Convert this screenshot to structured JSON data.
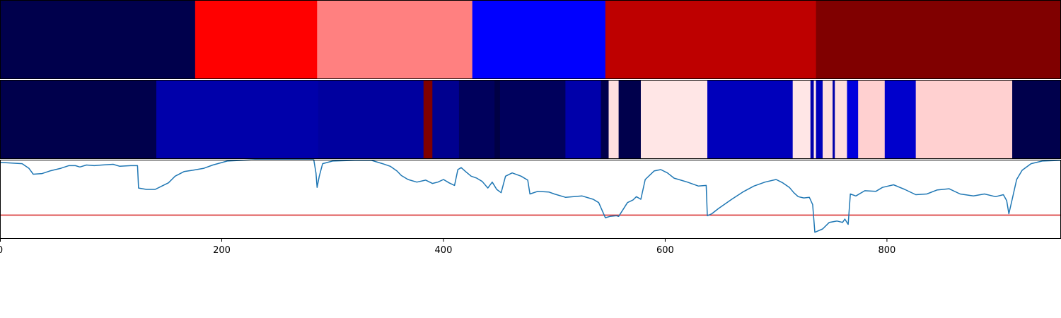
{
  "chart_data": {
    "type": "heatmap",
    "x_range": [
      0,
      957
    ],
    "x_ticks": [
      {
        "value": 0,
        "label": "0"
      },
      {
        "value": 200,
        "label": "200"
      },
      {
        "value": 400,
        "label": "400"
      },
      {
        "value": 600,
        "label": "600"
      },
      {
        "value": 800,
        "label": "800"
      }
    ],
    "panels": [
      {
        "name": "segment-band-top",
        "kind": "segments",
        "segments": [
          {
            "start": 0,
            "end": 176,
            "color": "#00004c"
          },
          {
            "start": 176,
            "end": 286,
            "color": "#ff0000"
          },
          {
            "start": 286,
            "end": 426,
            "color": "#ff8080"
          },
          {
            "start": 426,
            "end": 546,
            "color": "#0000ff"
          },
          {
            "start": 546,
            "end": 736,
            "color": "#be0000"
          },
          {
            "start": 736,
            "end": 957,
            "color": "#800000"
          }
        ]
      },
      {
        "name": "segment-band-middle",
        "kind": "segments",
        "segments": [
          {
            "start": 0,
            "end": 141,
            "color": "#00004c"
          },
          {
            "start": 141,
            "end": 287,
            "color": "#0000aa"
          },
          {
            "start": 287,
            "end": 382,
            "color": "#00009f"
          },
          {
            "start": 382,
            "end": 390,
            "color": "#800000"
          },
          {
            "start": 390,
            "end": 414,
            "color": "#00008f"
          },
          {
            "start": 414,
            "end": 446,
            "color": "#00005c"
          },
          {
            "start": 446,
            "end": 451,
            "color": "#000044"
          },
          {
            "start": 451,
            "end": 510,
            "color": "#00005c"
          },
          {
            "start": 510,
            "end": 542,
            "color": "#0000aa"
          },
          {
            "start": 542,
            "end": 549,
            "color": "#00004c"
          },
          {
            "start": 549,
            "end": 558,
            "color": "#ffe0e0"
          },
          {
            "start": 558,
            "end": 578,
            "color": "#00004c"
          },
          {
            "start": 578,
            "end": 638,
            "color": "#ffe6e6"
          },
          {
            "start": 638,
            "end": 715,
            "color": "#0000bb"
          },
          {
            "start": 715,
            "end": 731,
            "color": "#ffe6e6"
          },
          {
            "start": 731,
            "end": 734,
            "color": "#0000aa"
          },
          {
            "start": 734,
            "end": 736,
            "color": "#ffe6e6"
          },
          {
            "start": 736,
            "end": 742,
            "color": "#0000bb"
          },
          {
            "start": 742,
            "end": 751,
            "color": "#ffdede"
          },
          {
            "start": 751,
            "end": 753,
            "color": "#0000aa"
          },
          {
            "start": 753,
            "end": 764,
            "color": "#ffdede"
          },
          {
            "start": 764,
            "end": 774,
            "color": "#0000dd"
          },
          {
            "start": 774,
            "end": 798,
            "color": "#ffd0d0"
          },
          {
            "start": 798,
            "end": 826,
            "color": "#0000cc"
          },
          {
            "start": 826,
            "end": 913,
            "color": "#ffd0d0"
          },
          {
            "start": 913,
            "end": 957,
            "color": "#00004c"
          }
        ]
      },
      {
        "name": "line-panel",
        "kind": "line",
        "ylim": [
          -0.2,
          1.0
        ],
        "threshold": 0.16,
        "threshold_color": "#d62728",
        "line_color": "#1f77b4",
        "points": [
          [
            0,
            0.96
          ],
          [
            20,
            0.94
          ],
          [
            26,
            0.87
          ],
          [
            30,
            0.78
          ],
          [
            38,
            0.79
          ],
          [
            45,
            0.83
          ],
          [
            55,
            0.87
          ],
          [
            62,
            0.91
          ],
          [
            68,
            0.91
          ],
          [
            72,
            0.89
          ],
          [
            78,
            0.92
          ],
          [
            85,
            0.91
          ],
          [
            92,
            0.92
          ],
          [
            102,
            0.93
          ],
          [
            108,
            0.9
          ],
          [
            118,
            0.91
          ],
          [
            124,
            0.91
          ],
          [
            125,
            0.57
          ],
          [
            132,
            0.55
          ],
          [
            140,
            0.55
          ],
          [
            146,
            0.6
          ],
          [
            152,
            0.65
          ],
          [
            158,
            0.75
          ],
          [
            166,
            0.82
          ],
          [
            174,
            0.84
          ],
          [
            184,
            0.87
          ],
          [
            192,
            0.92
          ],
          [
            205,
            0.98
          ],
          [
            230,
            1.0
          ],
          [
            260,
            1.0
          ],
          [
            280,
            1.0
          ],
          [
            283,
            1.0
          ],
          [
            285,
            0.8
          ],
          [
            286,
            0.58
          ],
          [
            288,
            0.75
          ],
          [
            291,
            0.94
          ],
          [
            300,
            0.98
          ],
          [
            320,
            0.99
          ],
          [
            335,
            0.99
          ],
          [
            345,
            0.94
          ],
          [
            352,
            0.9
          ],
          [
            358,
            0.83
          ],
          [
            362,
            0.76
          ],
          [
            368,
            0.7
          ],
          [
            376,
            0.66
          ],
          [
            384,
            0.69
          ],
          [
            390,
            0.64
          ],
          [
            395,
            0.66
          ],
          [
            400,
            0.7
          ],
          [
            405,
            0.65
          ],
          [
            410,
            0.61
          ],
          [
            413,
            0.85
          ],
          [
            416,
            0.88
          ],
          [
            420,
            0.82
          ],
          [
            425,
            0.75
          ],
          [
            430,
            0.72
          ],
          [
            435,
            0.67
          ],
          [
            440,
            0.57
          ],
          [
            444,
            0.66
          ],
          [
            448,
            0.55
          ],
          [
            452,
            0.5
          ],
          [
            456,
            0.75
          ],
          [
            462,
            0.8
          ],
          [
            470,
            0.75
          ],
          [
            476,
            0.69
          ],
          [
            478,
            0.48
          ],
          [
            485,
            0.52
          ],
          [
            495,
            0.51
          ],
          [
            500,
            0.48
          ],
          [
            510,
            0.43
          ],
          [
            525,
            0.45
          ],
          [
            535,
            0.4
          ],
          [
            540,
            0.35
          ],
          [
            546,
            0.12
          ],
          [
            550,
            0.14
          ],
          [
            556,
            0.15
          ],
          [
            558,
            0.14
          ],
          [
            566,
            0.35
          ],
          [
            571,
            0.39
          ],
          [
            574,
            0.44
          ],
          [
            578,
            0.4
          ],
          [
            582,
            0.7
          ],
          [
            590,
            0.83
          ],
          [
            596,
            0.85
          ],
          [
            602,
            0.8
          ],
          [
            608,
            0.72
          ],
          [
            614,
            0.69
          ],
          [
            620,
            0.66
          ],
          [
            630,
            0.6
          ],
          [
            637,
            0.61
          ],
          [
            638,
            0.15
          ],
          [
            642,
            0.18
          ],
          [
            648,
            0.26
          ],
          [
            660,
            0.4
          ],
          [
            670,
            0.51
          ],
          [
            680,
            0.6
          ],
          [
            690,
            0.66
          ],
          [
            700,
            0.7
          ],
          [
            706,
            0.65
          ],
          [
            712,
            0.58
          ],
          [
            716,
            0.5
          ],
          [
            720,
            0.44
          ],
          [
            725,
            0.42
          ],
          [
            730,
            0.43
          ],
          [
            733,
            0.32
          ],
          [
            735,
            -0.1
          ],
          [
            742,
            -0.05
          ],
          [
            748,
            0.05
          ],
          [
            755,
            0.07
          ],
          [
            760,
            0.05
          ],
          [
            762,
            0.1
          ],
          [
            765,
            0.02
          ],
          [
            767,
            0.48
          ],
          [
            772,
            0.45
          ],
          [
            780,
            0.53
          ],
          [
            790,
            0.52
          ],
          [
            796,
            0.58
          ],
          [
            806,
            0.62
          ],
          [
            816,
            0.55
          ],
          [
            826,
            0.47
          ],
          [
            836,
            0.48
          ],
          [
            845,
            0.54
          ],
          [
            856,
            0.56
          ],
          [
            866,
            0.48
          ],
          [
            878,
            0.45
          ],
          [
            888,
            0.48
          ],
          [
            898,
            0.44
          ],
          [
            905,
            0.47
          ],
          [
            908,
            0.38
          ],
          [
            910,
            0.18
          ],
          [
            913,
            0.4
          ],
          [
            917,
            0.7
          ],
          [
            922,
            0.84
          ],
          [
            930,
            0.94
          ],
          [
            940,
            0.98
          ],
          [
            957,
            0.99
          ]
        ]
      }
    ]
  }
}
